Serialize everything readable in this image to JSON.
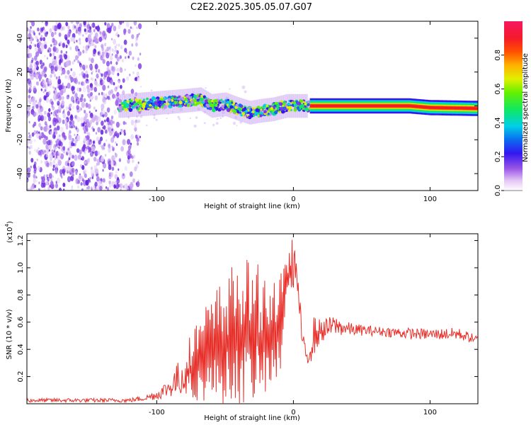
{
  "figure": {
    "title": "C2E2.2025.305.05.07.G07"
  },
  "chart_data": [
    {
      "type": "heatmap",
      "title": "C2E2.2025.305.05.07.G07",
      "xlabel": "Height of straight line (km)",
      "ylabel": "Frequency (Hz)",
      "xlim": [
        -195,
        135
      ],
      "ylim": [
        -50,
        50
      ],
      "xticks": [
        -100,
        0,
        100
      ],
      "yticks": [
        -40,
        -20,
        0,
        20,
        40
      ],
      "xtick_labels": [
        "-100",
        "0",
        "100"
      ],
      "ytick_labels": [
        "-40",
        "-20",
        "0",
        "20",
        "40"
      ],
      "colorbar": {
        "label": "Normalized spectral amplitude",
        "range": [
          0,
          1
        ],
        "ticks": [
          0.0,
          0.2,
          0.4,
          0.6,
          0.8
        ],
        "tick_labels": [
          "0.0",
          "0.2",
          "0.4",
          "0.6",
          "0.8"
        ]
      },
      "signal_trace": {
        "description_points_km_hz": [
          [
            -125,
            0
          ],
          [
            -110,
            1
          ],
          [
            -95,
            2
          ],
          [
            -80,
            3
          ],
          [
            -68,
            4
          ],
          [
            -60,
            0
          ],
          [
            -50,
            1
          ],
          [
            -40,
            -2
          ],
          [
            -32,
            -4
          ],
          [
            -25,
            -3
          ],
          [
            -15,
            -2
          ],
          [
            -5,
            0
          ],
          [
            5,
            0
          ],
          [
            15,
            0
          ],
          [
            60,
            0
          ],
          [
            85,
            0
          ],
          [
            100,
            -1
          ],
          [
            135,
            -1.5
          ]
        ],
        "noise_region_km": [
          -195,
          -120
        ]
      }
    },
    {
      "type": "line",
      "xlabel": "Height of straight line (km)",
      "ylabel": "SNR (10 * v/v)",
      "scale_label": "(x10",
      "scale_exponent": "4",
      "xlim": [
        -195,
        135
      ],
      "ylim": [
        0,
        1.25
      ],
      "xticks": [
        -100,
        0,
        100
      ],
      "yticks": [
        0.2,
        0.4,
        0.6,
        0.8,
        1.0,
        1.2
      ],
      "xtick_labels": [
        "-100",
        "0",
        "100"
      ],
      "ytick_labels": [
        "0.2",
        "0.4",
        "0.6",
        "0.8",
        "1.0",
        "1.2"
      ],
      "series": [
        {
          "name": "SNR",
          "color": "#e8302a",
          "envelope_km": [
            -195,
            -130,
            -120,
            -110,
            -100,
            -90,
            -80,
            -70,
            -60,
            -50,
            -40,
            -30,
            -20,
            -10,
            -5,
            0,
            2,
            5,
            8,
            10,
            15,
            20,
            30,
            40,
            50,
            60,
            80,
            100,
            120,
            135
          ],
          "envelope_low": [
            0.01,
            0.01,
            0.01,
            0.02,
            0.03,
            0.05,
            0.05,
            0.02,
            0.01,
            0.0,
            0.0,
            0.0,
            0.05,
            0.15,
            0.8,
            0.85,
            0.9,
            0.5,
            0.28,
            0.25,
            0.35,
            0.45,
            0.5,
            0.5,
            0.5,
            0.5,
            0.48,
            0.47,
            0.47,
            0.44
          ],
          "envelope_high": [
            0.04,
            0.04,
            0.04,
            0.06,
            0.1,
            0.2,
            0.4,
            0.65,
            0.8,
            0.95,
            1.1,
            1.05,
            1.0,
            0.95,
            1.05,
            1.25,
            1.1,
            0.75,
            0.45,
            0.45,
            0.65,
            0.62,
            0.65,
            0.6,
            0.58,
            0.57,
            0.56,
            0.55,
            0.56,
            0.5
          ]
        }
      ]
    }
  ],
  "colors": {
    "line": "#e8302a",
    "axis": "#000000",
    "background": "#ffffff"
  }
}
